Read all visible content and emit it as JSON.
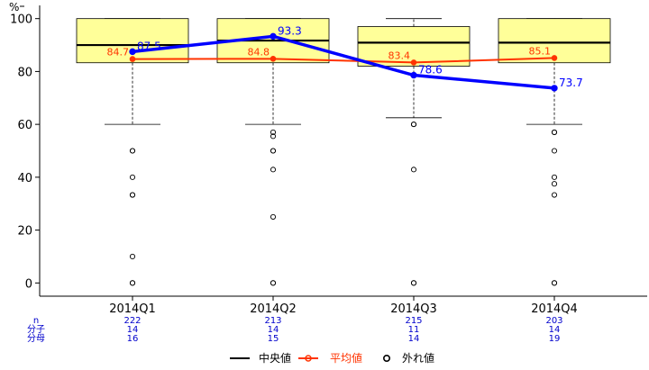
{
  "chart_data": {
    "type": "boxplot",
    "y_unit_label": "%",
    "ylim": [
      -5,
      105
    ],
    "yticks": [
      0,
      20,
      40,
      60,
      80,
      100
    ],
    "categories": [
      "2014Q1",
      "2014Q2",
      "2014Q3",
      "2014Q4"
    ],
    "boxes": [
      {
        "category": "2014Q1",
        "whisker_low": 60,
        "q1": 83.3,
        "median": 90,
        "q3": 100,
        "whisker_high": 100,
        "outliers": [
          50,
          50,
          40,
          33.3,
          33.3,
          10,
          0,
          0
        ]
      },
      {
        "category": "2014Q2",
        "whisker_low": 60,
        "q1": 83.3,
        "median": 91.7,
        "q3": 100,
        "whisker_high": 100,
        "outliers": [
          57,
          55.5,
          50,
          50,
          42.9,
          25,
          0,
          0
        ]
      },
      {
        "category": "2014Q3",
        "whisker_low": 62.5,
        "q1": 82,
        "median": 90.9,
        "q3": 97,
        "whisker_high": 100,
        "outliers": [
          60,
          60,
          42.9,
          0,
          0
        ]
      },
      {
        "category": "2014Q4",
        "whisker_low": 60,
        "q1": 83.3,
        "median": 90.9,
        "q3": 100,
        "whisker_high": 100,
        "outliers": [
          57,
          57,
          50,
          40,
          37.5,
          33.3,
          0,
          0
        ]
      }
    ],
    "series": [
      {
        "name": "平均値",
        "color": "#ff3300",
        "values": [
          84.7,
          84.8,
          83.4,
          85.1
        ],
        "labels": [
          "84.7",
          "84.8",
          "83.4",
          "85.1"
        ]
      },
      {
        "name": "",
        "color": "#0000ff",
        "values": [
          87.5,
          93.3,
          78.6,
          73.7
        ],
        "labels": [
          "87.5",
          "93.3",
          "78.6",
          "73.7"
        ]
      }
    ],
    "table": {
      "row_labels": [
        "n",
        "分子",
        "分母"
      ],
      "values": [
        [
          "222",
          "14",
          "16"
        ],
        [
          "213",
          "14",
          "15"
        ],
        [
          "215",
          "11",
          "14"
        ],
        [
          "203",
          "14",
          "19"
        ]
      ]
    },
    "legend": {
      "placement": "bottom",
      "items": [
        {
          "name": "中央値",
          "kind": "line",
          "color": "#000000"
        },
        {
          "name": "平均値",
          "kind": "line-point",
          "color": "#ff3300"
        },
        {
          "name": "外れ値",
          "kind": "circle",
          "color": "#000000"
        }
      ]
    },
    "box_fill": "#ffff99",
    "grid": false
  }
}
